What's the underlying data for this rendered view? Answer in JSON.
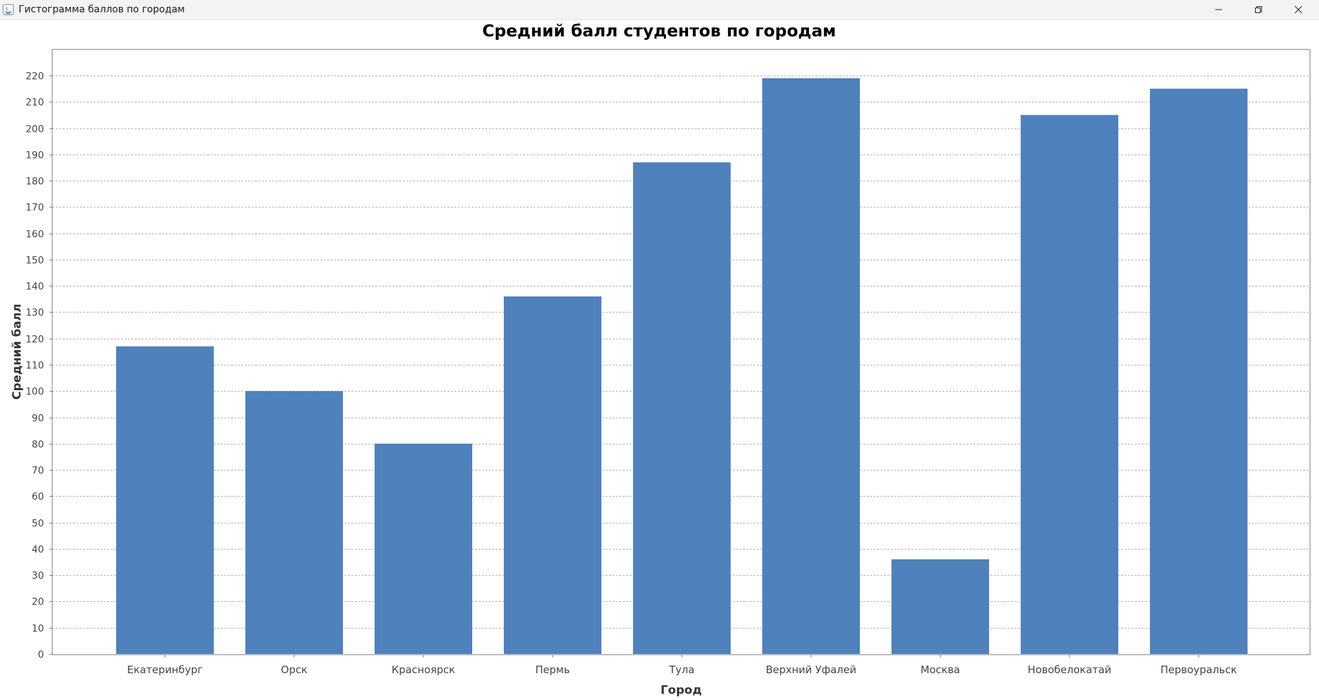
{
  "window": {
    "title": "Гистограмма баллов по городам",
    "icons": [
      "java-app-icon",
      "minimize-icon",
      "restore-icon",
      "close-icon"
    ]
  },
  "chart_data": {
    "type": "bar",
    "title": "Средний балл студентов по городам",
    "xlabel": "Город",
    "ylabel": "Средний балл",
    "categories": [
      "Екатеринбург",
      "Орск",
      "Красноярск",
      "Пермь",
      "Тула",
      "Верхний Уфалей",
      "Москва",
      "Новобелокатай",
      "Первоуральск"
    ],
    "values": [
      117,
      100,
      80,
      136,
      187,
      219,
      36,
      205,
      215
    ],
    "ylim": [
      0,
      220
    ],
    "yticks": [
      0,
      10,
      20,
      30,
      40,
      50,
      60,
      70,
      80,
      90,
      100,
      110,
      120,
      130,
      140,
      150,
      160,
      170,
      180,
      190,
      200,
      210,
      220
    ],
    "grid": true,
    "bar_color": "#4f81bd"
  }
}
